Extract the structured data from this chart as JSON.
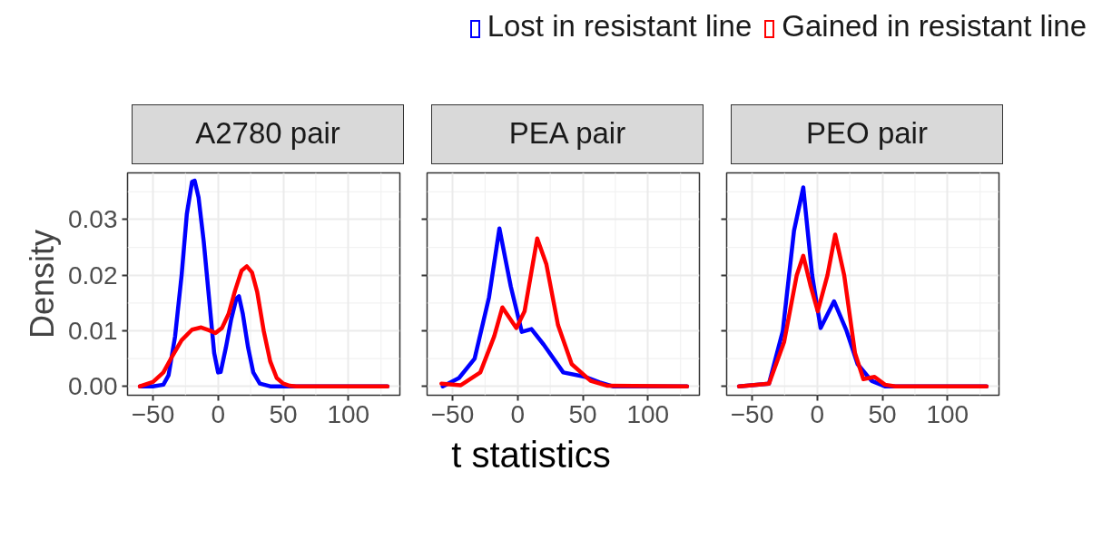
{
  "chart_data": [
    {
      "type": "line",
      "title": "A2780 pair",
      "ylabel": "Density",
      "legend": "top",
      "grid": true,
      "xlim": [
        -69.5,
        139.5
      ],
      "ylim": [
        -0.0016,
        0.0384
      ],
      "xticks": [
        -50,
        0,
        50,
        100
      ],
      "yticks": [
        {
          "value": 0,
          "label": "0.00"
        },
        {
          "value": 0.01,
          "label": "0.01"
        },
        {
          "value": 0.02,
          "label": "0.02"
        },
        {
          "value": 0.03,
          "label": "0.03"
        }
      ],
      "series": [
        {
          "name": "Lost in resistant line",
          "color": "#0000ff",
          "x": [
            -60,
            -50,
            -42,
            -38,
            -33,
            -28,
            -24,
            -20,
            -18,
            -15,
            -11,
            -7,
            -3,
            0,
            2,
            6,
            10,
            14,
            16,
            19,
            23,
            27,
            32,
            40,
            60,
            130
          ],
          "values": [
            0,
            0,
            0.0003,
            0.002,
            0.009,
            0.02,
            0.031,
            0.0368,
            0.037,
            0.034,
            0.026,
            0.016,
            0.006,
            0.0025,
            0.0026,
            0.007,
            0.012,
            0.0158,
            0.0162,
            0.013,
            0.007,
            0.0025,
            0.0005,
            0,
            0,
            0
          ]
        },
        {
          "name": "Gained in resistant line",
          "color": "#ff0000",
          "x": [
            -60,
            -50,
            -42,
            -35,
            -28,
            -20,
            -13,
            -7,
            -2,
            3,
            8,
            13,
            18,
            22,
            26,
            30,
            35,
            40,
            45,
            50,
            55,
            60,
            130
          ],
          "values": [
            0,
            0.0008,
            0.0025,
            0.0055,
            0.0083,
            0.0102,
            0.0106,
            0.0101,
            0.0096,
            0.0105,
            0.013,
            0.0172,
            0.0208,
            0.0216,
            0.0205,
            0.017,
            0.01,
            0.0045,
            0.0015,
            0.0005,
            0.0001,
            0,
            0
          ]
        }
      ]
    },
    {
      "type": "line",
      "title": "PEA pair",
      "xlabel": "t statistics",
      "tick_labels": "x",
      "grid": true,
      "xlim": [
        -69.5,
        139.5
      ],
      "ylim": [
        -0.0016,
        0.0384
      ],
      "xticks": [
        -50,
        0,
        50,
        100
      ],
      "yticks": [
        0,
        0.01,
        0.02,
        0.03
      ],
      "series": [
        {
          "color": "#0000ff",
          "x": [
            -57.5,
            -45,
            -33,
            -22,
            -14,
            -5.3,
            3.2,
            10.6,
            20,
            35,
            52,
            63,
            73,
            130
          ],
          "values": [
            0,
            0.0015,
            0.005,
            0.016,
            0.0284,
            0.018,
            0.0098,
            0.0103,
            0.0075,
            0.0025,
            0.0017,
            0.0007,
            0,
            0
          ]
        },
        {
          "color": "#ff0000",
          "x": [
            -58.5,
            -43.6,
            -28.7,
            -18,
            -11.7,
            -1,
            5.3,
            15,
            22,
            31,
            41.5,
            56,
            69,
            130
          ],
          "values": [
            0.0005,
            0.0002,
            0.0025,
            0.009,
            0.0142,
            0.0105,
            0.0135,
            0.0266,
            0.022,
            0.011,
            0.004,
            0.001,
            0.0001,
            0
          ]
        }
      ]
    },
    {
      "type": "line",
      "title": "PEO pair",
      "tick_labels": "x",
      "grid": true,
      "xlim": [
        -69.5,
        139.5
      ],
      "ylim": [
        -0.0016,
        0.0384
      ],
      "xticks": [
        -50,
        0,
        50,
        100
      ],
      "yticks": [
        0,
        0.01,
        0.02,
        0.03
      ],
      "series": [
        {
          "color": "#0000ff",
          "x": [
            -60,
            -37,
            -26.4,
            -17.8,
            -10.7,
            -3.9,
            2.6,
            12.9,
            22.5,
            31,
            41.7,
            52,
            130
          ],
          "values": [
            0,
            0.0005,
            0.01,
            0.028,
            0.0358,
            0.02,
            0.0105,
            0.0153,
            0.01,
            0.004,
            0.001,
            0,
            0
          ]
        },
        {
          "color": "#ff0000",
          "x": [
            -60,
            -37,
            -25.4,
            -15.7,
            -10.7,
            -5,
            0.4,
            7.9,
            13.8,
            20.7,
            29,
            35.4,
            44,
            52,
            60,
            130
          ],
          "values": [
            0,
            0.0005,
            0.008,
            0.02,
            0.0235,
            0.018,
            0.0135,
            0.02,
            0.0273,
            0.02,
            0.006,
            0.0013,
            0.0017,
            0.0003,
            0,
            0
          ]
        }
      ]
    }
  ]
}
